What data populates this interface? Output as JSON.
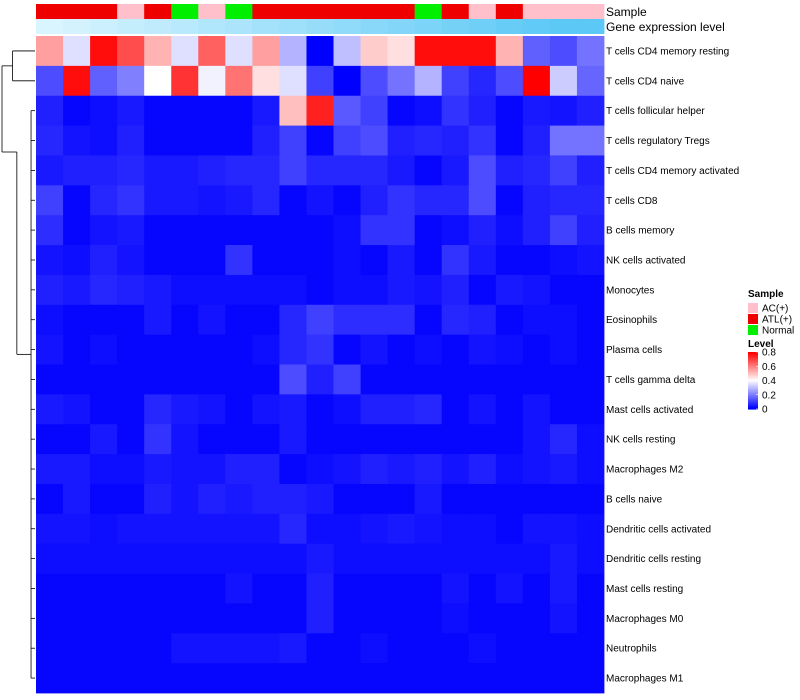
{
  "chart_data": {
    "type": "heatmap",
    "title": "",
    "annotation_tracks": [
      {
        "name": "Sample",
        "values": [
          "ATL(+)",
          "ATL(+)",
          "ATL(+)",
          "AC(+)",
          "ATL(+)",
          "Normal",
          "AC(+)",
          "Normal",
          "ATL(+)",
          "ATL(+)",
          "ATL(+)",
          "ATL(+)",
          "ATL(+)",
          "ATL(+)",
          "Normal",
          "ATL(+)",
          "AC(+)",
          "ATL(+)",
          "AC(+)",
          "AC(+)",
          "AC(+)"
        ]
      },
      {
        "name": "Gene expression level",
        "values": [
          0.05,
          0.1,
          0.15,
          0.2,
          0.25,
          0.3,
          0.35,
          0.4,
          0.45,
          0.5,
          0.55,
          0.6,
          0.65,
          0.7,
          0.75,
          0.8,
          0.85,
          0.9,
          0.95,
          1.0,
          1.0
        ]
      }
    ],
    "rows": [
      "T cells CD4 memory resting",
      "T cells CD4 naive",
      "T cells follicular helper",
      "T cells regulatory  Tregs",
      "T cells CD4 memory activated",
      "T cells CD8",
      "B cells memory",
      "NK cells activated",
      "Monocytes",
      "Eosinophils",
      "Plasma cells",
      "T cells gamma delta",
      "Mast cells activated",
      "NK cells resting",
      "Macrophages M2",
      "B cells naive",
      "Dendritic cells activated",
      "Dendritic cells resting",
      "Mast cells resting",
      "Macrophages M0",
      "Neutrophils",
      "Macrophages M1"
    ],
    "values": [
      [
        0.55,
        0.35,
        0.78,
        0.68,
        0.52,
        0.35,
        0.65,
        0.35,
        0.55,
        0.28,
        0.0,
        0.3,
        0.48,
        0.45,
        0.78,
        0.78,
        0.78,
        0.52,
        0.15,
        0.12,
        0.18
      ],
      [
        0.12,
        0.78,
        0.15,
        0.2,
        0.4,
        0.72,
        0.38,
        0.62,
        0.45,
        0.35,
        0.1,
        0.0,
        0.12,
        0.18,
        0.28,
        0.1,
        0.06,
        0.12,
        0.8,
        0.32,
        0.16
      ],
      [
        0.05,
        0.01,
        0.02,
        0.04,
        0.01,
        0.01,
        0.01,
        0.01,
        0.04,
        0.5,
        0.75,
        0.14,
        0.1,
        0.01,
        0.02,
        0.08,
        0.05,
        0.01,
        0.04,
        0.03,
        0.05
      ],
      [
        0.06,
        0.03,
        0.02,
        0.05,
        0.01,
        0.01,
        0.01,
        0.01,
        0.05,
        0.1,
        0.01,
        0.1,
        0.12,
        0.05,
        0.06,
        0.05,
        0.08,
        0.01,
        0.05,
        0.18,
        0.18
      ],
      [
        0.04,
        0.05,
        0.05,
        0.06,
        0.04,
        0.04,
        0.05,
        0.06,
        0.06,
        0.1,
        0.06,
        0.06,
        0.06,
        0.04,
        0.01,
        0.04,
        0.12,
        0.05,
        0.06,
        0.1,
        0.05
      ],
      [
        0.1,
        0.01,
        0.06,
        0.08,
        0.04,
        0.04,
        0.03,
        0.04,
        0.06,
        0.01,
        0.03,
        0.01,
        0.05,
        0.08,
        0.06,
        0.06,
        0.12,
        0.01,
        0.05,
        0.06,
        0.06
      ],
      [
        0.07,
        0.01,
        0.03,
        0.04,
        0.01,
        0.01,
        0.01,
        0.01,
        0.01,
        0.01,
        0.01,
        0.02,
        0.08,
        0.08,
        0.01,
        0.02,
        0.05,
        0.02,
        0.05,
        0.1,
        0.05
      ],
      [
        0.03,
        0.02,
        0.05,
        0.03,
        0.01,
        0.01,
        0.01,
        0.08,
        0.01,
        0.01,
        0.01,
        0.02,
        0.01,
        0.04,
        0.01,
        0.08,
        0.04,
        0.01,
        0.01,
        0.02,
        0.03
      ],
      [
        0.05,
        0.04,
        0.06,
        0.05,
        0.04,
        0.02,
        0.02,
        0.02,
        0.02,
        0.02,
        0.01,
        0.02,
        0.02,
        0.04,
        0.03,
        0.05,
        0.01,
        0.04,
        0.03,
        0.01,
        0.01
      ],
      [
        0.02,
        0.01,
        0.01,
        0.01,
        0.04,
        0.01,
        0.03,
        0.01,
        0.01,
        0.06,
        0.1,
        0.07,
        0.07,
        0.07,
        0.01,
        0.06,
        0.05,
        0.01,
        0.02,
        0.02,
        0.01
      ],
      [
        0.03,
        0.01,
        0.02,
        0.01,
        0.01,
        0.01,
        0.01,
        0.01,
        0.02,
        0.06,
        0.08,
        0.01,
        0.03,
        0.01,
        0.02,
        0.01,
        0.03,
        0.02,
        0.01,
        0.02,
        0.01
      ],
      [
        0.01,
        0.01,
        0.01,
        0.01,
        0.01,
        0.01,
        0.01,
        0.01,
        0.01,
        0.12,
        0.05,
        0.1,
        0.01,
        0.01,
        0.01,
        0.01,
        0.01,
        0.01,
        0.01,
        0.01,
        0.01
      ],
      [
        0.04,
        0.03,
        0.01,
        0.01,
        0.06,
        0.04,
        0.03,
        0.01,
        0.03,
        0.04,
        0.01,
        0.02,
        0.05,
        0.05,
        0.06,
        0.01,
        0.03,
        0.01,
        0.03,
        0.01,
        0.01
      ],
      [
        0.01,
        0.01,
        0.04,
        0.01,
        0.08,
        0.03,
        0.01,
        0.01,
        0.01,
        0.04,
        0.01,
        0.01,
        0.01,
        0.01,
        0.01,
        0.01,
        0.01,
        0.01,
        0.03,
        0.06,
        0.02
      ],
      [
        0.04,
        0.04,
        0.02,
        0.02,
        0.04,
        0.03,
        0.03,
        0.05,
        0.05,
        0.01,
        0.02,
        0.03,
        0.05,
        0.04,
        0.05,
        0.03,
        0.05,
        0.02,
        0.03,
        0.04,
        0.02
      ],
      [
        0.01,
        0.04,
        0.01,
        0.01,
        0.05,
        0.03,
        0.05,
        0.04,
        0.05,
        0.05,
        0.04,
        0.01,
        0.01,
        0.01,
        0.04,
        0.01,
        0.01,
        0.01,
        0.01,
        0.01,
        0.01
      ],
      [
        0.03,
        0.03,
        0.02,
        0.03,
        0.03,
        0.03,
        0.03,
        0.03,
        0.03,
        0.06,
        0.02,
        0.02,
        0.03,
        0.04,
        0.03,
        0.02,
        0.02,
        0.01,
        0.03,
        0.03,
        0.02
      ],
      [
        0.02,
        0.02,
        0.02,
        0.02,
        0.02,
        0.02,
        0.02,
        0.02,
        0.02,
        0.02,
        0.04,
        0.02,
        0.02,
        0.02,
        0.02,
        0.02,
        0.02,
        0.02,
        0.02,
        0.04,
        0.02
      ],
      [
        0.01,
        0.01,
        0.01,
        0.01,
        0.01,
        0.01,
        0.01,
        0.03,
        0.01,
        0.01,
        0.05,
        0.01,
        0.01,
        0.01,
        0.01,
        0.03,
        0.01,
        0.03,
        0.01,
        0.04,
        0.01
      ],
      [
        0.01,
        0.01,
        0.01,
        0.01,
        0.01,
        0.01,
        0.01,
        0.01,
        0.01,
        0.01,
        0.05,
        0.01,
        0.01,
        0.01,
        0.01,
        0.02,
        0.01,
        0.01,
        0.01,
        0.03,
        0.01
      ],
      [
        0.01,
        0.01,
        0.01,
        0.01,
        0.01,
        0.03,
        0.03,
        0.03,
        0.03,
        0.04,
        0.01,
        0.01,
        0.02,
        0.01,
        0.01,
        0.01,
        0.02,
        0.01,
        0.01,
        0.01,
        0.01
      ],
      [
        0.01,
        0.01,
        0.01,
        0.01,
        0.01,
        0.01,
        0.01,
        0.01,
        0.01,
        0.01,
        0.01,
        0.01,
        0.01,
        0.01,
        0.01,
        0.01,
        0.01,
        0.01,
        0.01,
        0.01,
        0.01
      ]
    ],
    "color_scale": {
      "min": 0,
      "max": 0.8,
      "low": "#0000ff",
      "mid": "#ffffff",
      "high": "#ff0000"
    },
    "legend_placement": "right"
  },
  "legend": {
    "sample_title": "Sample",
    "sample_items": [
      {
        "label": "AC(+)",
        "color": "#ffc0cb"
      },
      {
        "label": "ATL(+)",
        "color": "#ee0000"
      },
      {
        "label": "Normal",
        "color": "#00ee00"
      }
    ],
    "level_title": "Level",
    "level_ticks": [
      "0.8",
      "0.6",
      "0.4",
      "0.2",
      "0"
    ]
  },
  "colors": {
    "sample_AC": "#ffc0cb",
    "sample_ATL": "#ee0000",
    "sample_Normal": "#00ee00",
    "gene_expr_low": "#e0f7ff",
    "gene_expr_high": "#5bc8f5"
  }
}
